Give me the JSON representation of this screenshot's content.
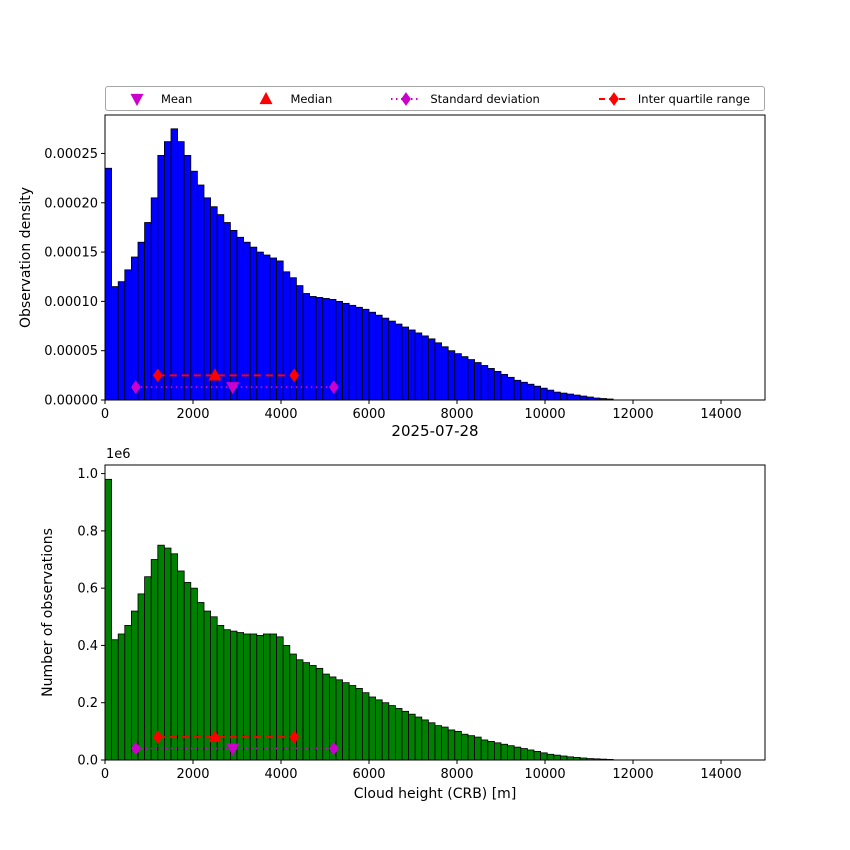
{
  "title": "2025-07-28",
  "legend": {
    "items": [
      {
        "label": "Mean",
        "marker": "triangle-down",
        "color": "#cc00cc"
      },
      {
        "label": "Median",
        "marker": "triangle-up",
        "color": "#ff0000"
      },
      {
        "label": "Standard deviation",
        "marker": "diamond-dotted-line",
        "color": "#cc00cc"
      },
      {
        "label": "Inter quartile range",
        "marker": "diamond-dashed-line",
        "color": "#ff0000"
      }
    ]
  },
  "chart_data": [
    {
      "type": "bar",
      "title": "",
      "xlabel": "",
      "ylabel": "Observation density",
      "bar_color": "#0000ff",
      "edge_color": "#000000",
      "xlim": [
        0,
        15000
      ],
      "ylim": [
        0,
        0.000289
      ],
      "bin_start": 0,
      "bin_width": 150,
      "values": [
        0.000235,
        0.000115,
        0.00012,
        0.000132,
        0.000145,
        0.00016,
        0.00018,
        0.000205,
        0.000248,
        0.000262,
        0.000275,
        0.000262,
        0.000248,
        0.000232,
        0.000218,
        0.000205,
        0.000196,
        0.000188,
        0.00018,
        0.000172,
        0.000165,
        0.00016,
        0.000155,
        0.00015,
        0.000147,
        0.000144,
        0.000141,
        0.00013,
        0.000124,
        0.000116,
        0.000108,
        0.000105,
        0.000104,
        0.000103,
        0.000102,
        0.0001,
        9.8e-05,
        9.6e-05,
        9.4e-05,
        9.2e-05,
        8.9e-05,
        8.6e-05,
        8.3e-05,
        8e-05,
        7.7e-05,
        7.4e-05,
        7.1e-05,
        6.8e-05,
        6.5e-05,
        6.2e-05,
        5.8e-05,
        5.4e-05,
        5e-05,
        4.7e-05,
        4.4e-05,
        4.1e-05,
        3.8e-05,
        3.5e-05,
        3.2e-05,
        2.9e-05,
        2.6e-05,
        2.3e-05,
        2e-05,
        1.8e-05,
        1.6e-05,
        1.4e-05,
        1.2e-05,
        1e-05,
        8e-06,
        7e-06,
        6e-06,
        5e-06,
        4e-06,
        3e-06,
        2e-06,
        1.5e-06,
        1e-06
      ],
      "xticks": {
        "values": [
          0,
          2000,
          4000,
          6000,
          8000,
          10000,
          12000,
          14000
        ],
        "labels": [
          "0",
          "2000",
          "4000",
          "6000",
          "8000",
          "10000",
          "12000",
          "14000"
        ]
      },
      "yticks": {
        "values": [
          0,
          5e-05,
          0.0001,
          0.00015,
          0.0002,
          0.00025
        ],
        "labels": [
          "0.00000",
          "0.00005",
          "0.00010",
          "0.00015",
          "0.00020",
          "0.00025"
        ]
      },
      "stats": {
        "mean": 2900,
        "median": 2500,
        "iqr": [
          1200,
          4300
        ],
        "std_range": [
          700,
          5200
        ],
        "iqr_line_y": 2.5e-05,
        "std_line_y": 1.3e-05,
        "mean_color": "#cc00cc",
        "median_color": "#ff0000",
        "std_color": "#cc00cc",
        "iqr_color": "#ff0000"
      }
    },
    {
      "type": "bar",
      "title": "",
      "xlabel": "Cloud height (CRB) [m]",
      "ylabel": "Number of observations",
      "offset_text": "1e6",
      "bar_color": "#008000",
      "edge_color": "#000000",
      "xlim": [
        0,
        15000
      ],
      "ylim": [
        0,
        1030000
      ],
      "bin_start": 0,
      "bin_width": 150,
      "values": [
        980000,
        420000,
        440000,
        470000,
        520000,
        580000,
        640000,
        700000,
        750000,
        740000,
        720000,
        660000,
        620000,
        600000,
        550000,
        520000,
        500000,
        470000,
        455000,
        450000,
        445000,
        440000,
        440000,
        435000,
        440000,
        440000,
        430000,
        400000,
        370000,
        350000,
        340000,
        330000,
        320000,
        300000,
        290000,
        280000,
        270000,
        260000,
        250000,
        235000,
        220000,
        210000,
        200000,
        190000,
        180000,
        170000,
        160000,
        150000,
        140000,
        130000,
        120000,
        115000,
        105000,
        100000,
        90000,
        85000,
        80000,
        70000,
        65000,
        60000,
        55000,
        50000,
        45000,
        40000,
        35000,
        30000,
        25000,
        20000,
        17000,
        14000,
        11000,
        9000,
        7000,
        5000,
        4000,
        3000,
        2000
      ],
      "xticks": {
        "values": [
          0,
          2000,
          4000,
          6000,
          8000,
          10000,
          12000,
          14000
        ],
        "labels": [
          "0",
          "2000",
          "4000",
          "6000",
          "8000",
          "10000",
          "12000",
          "14000"
        ]
      },
      "yticks": {
        "values": [
          0,
          200000,
          400000,
          600000,
          800000,
          1000000
        ],
        "labels": [
          "0.0",
          "0.2",
          "0.4",
          "0.6",
          "0.8",
          "1.0"
        ]
      },
      "stats": {
        "mean": 2900,
        "median": 2500,
        "iqr": [
          1200,
          4300
        ],
        "std_range": [
          700,
          5200
        ],
        "iqr_line_y": 80000,
        "std_line_y": 40000,
        "mean_color": "#cc00cc",
        "median_color": "#ff0000",
        "std_color": "#cc00cc",
        "iqr_color": "#ff0000"
      }
    }
  ]
}
